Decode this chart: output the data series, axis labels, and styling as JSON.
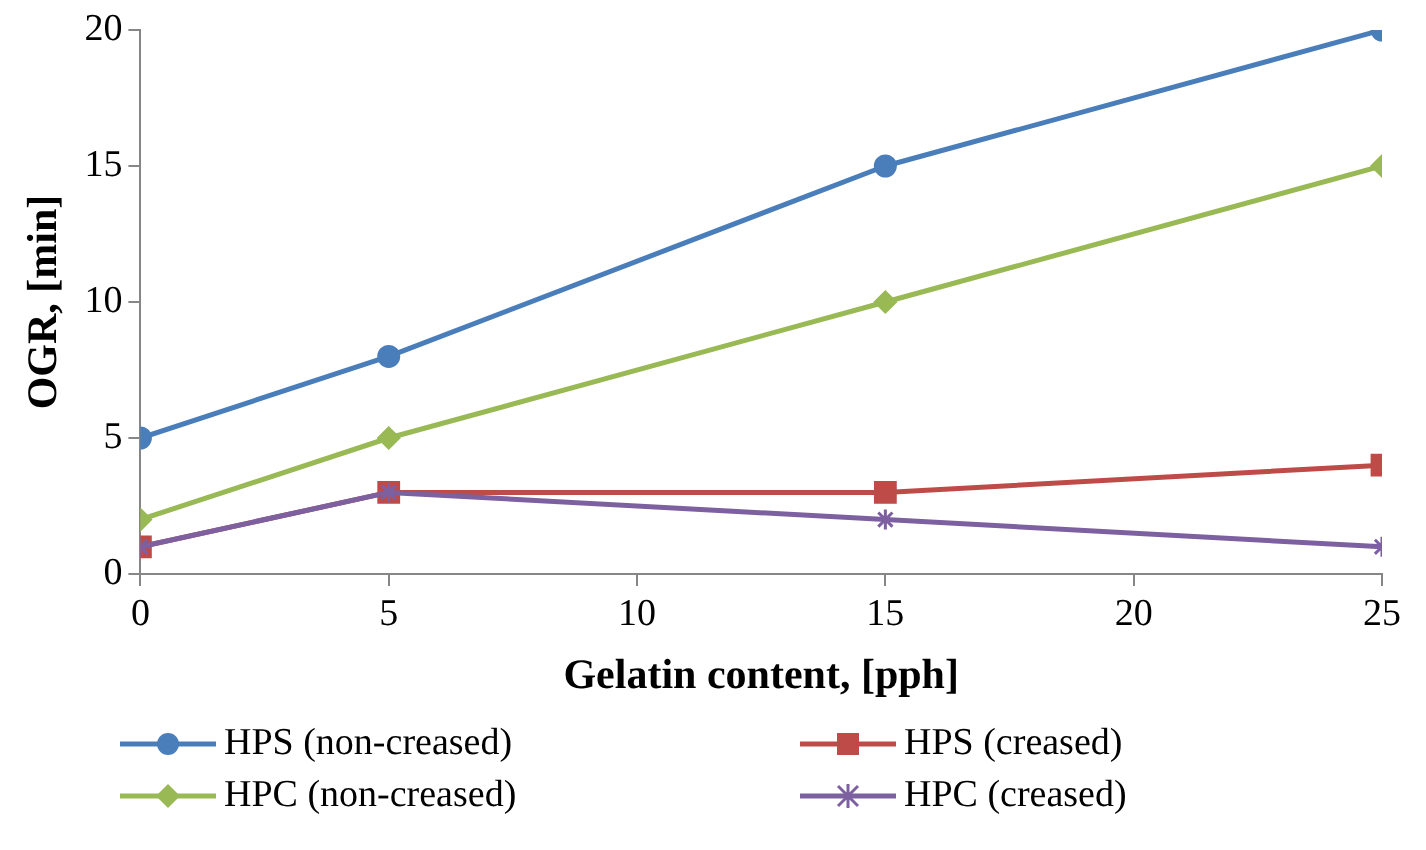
{
  "chart_data": {
    "type": "line",
    "xlabel": "Gelatin content, [pph]",
    "ylabel": "OGR, [min]",
    "x": [
      0,
      5,
      15,
      25
    ],
    "xlim": [
      0,
      25
    ],
    "xticks": [
      0,
      5,
      10,
      15,
      20,
      25
    ],
    "ylim": [
      0,
      20
    ],
    "yticks": [
      0,
      5,
      10,
      15,
      20
    ],
    "legend": "bottom",
    "line_style": "solid",
    "series": [
      {
        "name": "HPS (non-creased)",
        "color": "#4a7ebb",
        "marker": "circle",
        "values": [
          5,
          8,
          15,
          20
        ]
      },
      {
        "name": "HPS (creased)",
        "color": "#be4b48",
        "marker": "square",
        "values": [
          1,
          3,
          3,
          4
        ]
      },
      {
        "name": "HPC (non-creased)",
        "color": "#98b954",
        "marker": "diamond",
        "values": [
          2,
          5,
          10,
          15
        ]
      },
      {
        "name": "HPC (creased)",
        "color": "#7d60a0",
        "marker": "cross",
        "values": [
          1,
          3,
          2,
          1
        ]
      }
    ]
  }
}
